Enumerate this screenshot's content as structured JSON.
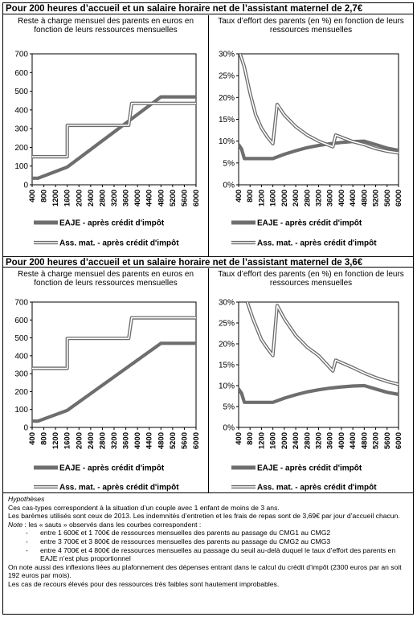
{
  "sections": [
    {
      "title": "Pour 200 heures d’accueil et un salaire horaire net de l’assistant maternel de 2,7€"
    },
    {
      "title": "Pour 200 heures d’accueil et un salaire horaire net de l’assistant maternel de 3,6€"
    }
  ],
  "chart_data": [
    {
      "type": "line",
      "title": "Reste à charge mensuel des parents en euros en fonction de leurs ressources mensuelles",
      "x": [
        400,
        800,
        1200,
        1600,
        2000,
        2400,
        2800,
        3200,
        3600,
        4000,
        4400,
        4800,
        5200,
        5600,
        6000
      ],
      "xlim": [
        400,
        6000
      ],
      "ylim": [
        0,
        700
      ],
      "yticks": [
        "0",
        "100",
        "200",
        "300",
        "400",
        "500",
        "600",
        "700"
      ],
      "grid": false,
      "legend": "bottom",
      "series": [
        {
          "name": "EAJE - après crédit d'impôt",
          "style": "thick-grey",
          "points": [
            [
              400,
              35
            ],
            [
              600,
              35
            ],
            [
              1600,
              95
            ],
            [
              4800,
              470
            ],
            [
              6000,
              470
            ]
          ]
        },
        {
          "name": "Ass. mat. - après crédit d'impôt",
          "style": "double",
          "points": [
            [
              400,
              150
            ],
            [
              1600,
              150
            ],
            [
              1600,
              318
            ],
            [
              3700,
              318
            ],
            [
              3800,
              435
            ],
            [
              6000,
              435
            ]
          ]
        }
      ]
    },
    {
      "type": "line",
      "title": "Taux d’effort des parents (en %) en fonction de leurs ressources mensuelles",
      "x": [
        400,
        800,
        1200,
        1600,
        2000,
        2400,
        2800,
        3200,
        3600,
        4000,
        4400,
        4800,
        5200,
        5600,
        6000
      ],
      "xlim": [
        400,
        6000
      ],
      "ylim": [
        0,
        30
      ],
      "yticks": [
        "0%",
        "5%",
        "10%",
        "15%",
        "20%",
        "25%",
        "30%"
      ],
      "grid": false,
      "legend": "bottom",
      "series": [
        {
          "name": "EAJE - après crédit d'impôt",
          "style": "thick-grey",
          "points": [
            [
              400,
              9.2
            ],
            [
              500,
              8.2
            ],
            [
              600,
              6
            ],
            [
              1600,
              6
            ],
            [
              2000,
              7
            ],
            [
              2400,
              7.8
            ],
            [
              2800,
              8.5
            ],
            [
              3200,
              9
            ],
            [
              3600,
              9.4
            ],
            [
              4000,
              9.7
            ],
            [
              4400,
              9.9
            ],
            [
              4800,
              10
            ],
            [
              5200,
              9.2
            ],
            [
              5600,
              8.4
            ],
            [
              6000,
              7.9
            ]
          ]
        },
        {
          "name": "Ass. mat. - après crédit d'impôt",
          "style": "double",
          "points": [
            [
              450,
              30
            ],
            [
              600,
              27
            ],
            [
              800,
              21
            ],
            [
              1000,
              16
            ],
            [
              1200,
              13
            ],
            [
              1400,
              11
            ],
            [
              1600,
              9.4
            ],
            [
              1750,
              18.4
            ],
            [
              2000,
              16
            ],
            [
              2400,
              13.3
            ],
            [
              2800,
              11.4
            ],
            [
              3200,
              10
            ],
            [
              3700,
              8.7
            ],
            [
              3800,
              11.4
            ],
            [
              4400,
              9.9
            ],
            [
              4800,
              9.2
            ],
            [
              5200,
              8.3
            ],
            [
              5600,
              7.7
            ],
            [
              6000,
              7.3
            ]
          ]
        }
      ]
    },
    {
      "type": "line",
      "title": "Reste à charge mensuel des parents en euros en fonction de leurs ressources mensuelles",
      "x": [
        400,
        800,
        1200,
        1600,
        2000,
        2400,
        2800,
        3200,
        3600,
        4000,
        4400,
        4800,
        5200,
        5600,
        6000
      ],
      "xlim": [
        400,
        6000
      ],
      "ylim": [
        0,
        700
      ],
      "yticks": [
        "0",
        "100",
        "200",
        "300",
        "400",
        "500",
        "600",
        "700"
      ],
      "grid": false,
      "legend": "bottom",
      "series": [
        {
          "name": "EAJE - après crédit d'impôt",
          "style": "thick-grey",
          "points": [
            [
              400,
              35
            ],
            [
              600,
              35
            ],
            [
              1600,
              95
            ],
            [
              4800,
              470
            ],
            [
              6000,
              470
            ]
          ]
        },
        {
          "name": "Ass. mat. - après crédit d'impôt",
          "style": "double",
          "points": [
            [
              400,
              330
            ],
            [
              1600,
              330
            ],
            [
              1600,
              497
            ],
            [
              3700,
              497
            ],
            [
              3800,
              612
            ],
            [
              6000,
              612
            ]
          ]
        }
      ]
    },
    {
      "type": "line",
      "title": "Taux d’effort des parents (en %) en fonction de leurs ressources mensuelles",
      "x": [
        400,
        800,
        1200,
        1600,
        2000,
        2400,
        2800,
        3200,
        3600,
        4000,
        4400,
        4800,
        5200,
        5600,
        6000
      ],
      "xlim": [
        400,
        6000
      ],
      "ylim": [
        0,
        30
      ],
      "yticks": [
        "0%",
        "5%",
        "10%",
        "15%",
        "20%",
        "25%",
        "30%"
      ],
      "grid": false,
      "legend": "bottom",
      "series": [
        {
          "name": "EAJE - après crédit d'impôt",
          "style": "thick-grey",
          "points": [
            [
              400,
              9.2
            ],
            [
              500,
              8.2
            ],
            [
              600,
              6
            ],
            [
              1600,
              6
            ],
            [
              2000,
              7
            ],
            [
              2400,
              7.8
            ],
            [
              2800,
              8.5
            ],
            [
              3200,
              9
            ],
            [
              3600,
              9.4
            ],
            [
              4000,
              9.7
            ],
            [
              4400,
              9.9
            ],
            [
              4800,
              10
            ],
            [
              5200,
              9.2
            ],
            [
              5600,
              8.4
            ],
            [
              6000,
              7.9
            ]
          ]
        },
        {
          "name": "Ass. mat. - après crédit d'impôt",
          "style": "double",
          "points": [
            [
              700,
              30
            ],
            [
              900,
              26
            ],
            [
              1200,
              21
            ],
            [
              1400,
              19
            ],
            [
              1600,
              17.2
            ],
            [
              1750,
              29.2
            ],
            [
              2000,
              26
            ],
            [
              2400,
              22
            ],
            [
              2800,
              19.2
            ],
            [
              3200,
              17.2
            ],
            [
              3700,
              13.5
            ],
            [
              3800,
              16.1
            ],
            [
              4400,
              14.3
            ],
            [
              4800,
              13
            ],
            [
              5200,
              11.9
            ],
            [
              5600,
              11
            ],
            [
              6000,
              10.3
            ]
          ]
        }
      ]
    }
  ],
  "notes": {
    "heading": "Hypothèses",
    "line1": "Ces cas-types correspondent à la situation d’un couple avec 1 enfant de moins de 3 ans.",
    "line2": "Les barèmes utilisés sont ceux de 2013. Les indemnités d’entretien et les frais de repas sont de 3,69€ par jour d’accueil chacun.",
    "note_label": "Note",
    "note_text": " : les « sauts » observés dans les courbes correspondent :",
    "bullets": [
      "entre 1 600€ et 1 700€ de ressources mensuelles des parents au passage du CMG1 au CMG2",
      "entre 3 700€ et 3 800€ de ressources mensuelles des parents au passage du CMG2 au CMG3",
      "entre 4 700€ et 4 800€ de ressources mensuelles au passage du seuil au-delà duquel le taux d’effort des parents en EAJE n’est plus proportionnel"
    ],
    "line3": "On note aussi des inflexions liées au plafonnement des dépenses entrant dans le calcul du crédit d’impôt (2300 euros par an soit 192 euros par mois).",
    "line4": "Les cas de recours élevés pour des ressources très faibles sont hautement improbables."
  }
}
